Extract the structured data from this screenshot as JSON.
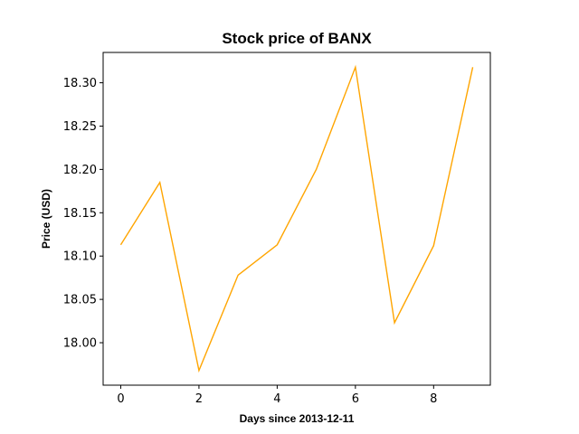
{
  "chart_data": {
    "type": "line",
    "title": "Stock price of BANX",
    "xlabel": "Days since 2013-12-11",
    "ylabel": "Price (USD)",
    "x": [
      0,
      1,
      2,
      3,
      4,
      5,
      6,
      7,
      8,
      9
    ],
    "series": [
      {
        "values": [
          18.113,
          18.185,
          17.968,
          18.078,
          18.113,
          18.2,
          18.318,
          18.023,
          18.112,
          18.318
        ],
        "color": "#ffa500"
      }
    ],
    "xlim": [
      -0.45,
      9.45
    ],
    "ylim": [
      17.951,
      18.335
    ],
    "xticks": [
      0,
      2,
      4,
      6,
      8
    ],
    "xtick_labels": [
      "0",
      "2",
      "4",
      "6",
      "8"
    ],
    "yticks": [
      18.0,
      18.05,
      18.1,
      18.15,
      18.2,
      18.25,
      18.3
    ],
    "ytick_labels": [
      "18.00",
      "18.05",
      "18.10",
      "18.15",
      "18.20",
      "18.25",
      "18.30"
    ],
    "grid": false,
    "legend": "none"
  }
}
